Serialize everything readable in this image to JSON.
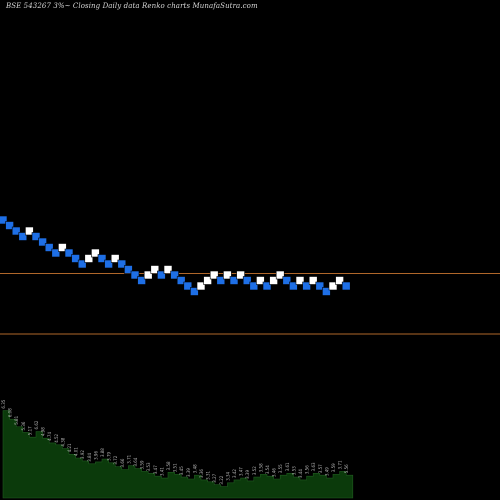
{
  "header": {
    "title": "BSE 543267 3%~  Closing Daily data  Renko  charts MunafaSutra.com"
  },
  "colors": {
    "background": "#000000",
    "up_brick": "#ffffff",
    "down_brick": "#1e6fe6",
    "reference_line": "#b0672a",
    "volume_fill": "#0b3a0b",
    "volume_label": "#b8b8b8"
  },
  "chart_data": {
    "type": "renko",
    "title": "BSE 543267 3%~  Closing Daily data  Renko  charts MunafaSutra.com",
    "brick_size_percent": 3,
    "reference_levels": [
      100,
      89
    ],
    "bricks": [
      {
        "dir": "down",
        "close": 109
      },
      {
        "dir": "down",
        "close": 108
      },
      {
        "dir": "down",
        "close": 107
      },
      {
        "dir": "down",
        "close": 106
      },
      {
        "dir": "up",
        "close": 107
      },
      {
        "dir": "down",
        "close": 106
      },
      {
        "dir": "down",
        "close": 105
      },
      {
        "dir": "down",
        "close": 104
      },
      {
        "dir": "down",
        "close": 103
      },
      {
        "dir": "up",
        "close": 104
      },
      {
        "dir": "down",
        "close": 103
      },
      {
        "dir": "down",
        "close": 102
      },
      {
        "dir": "down",
        "close": 101
      },
      {
        "dir": "up",
        "close": 102
      },
      {
        "dir": "up",
        "close": 103
      },
      {
        "dir": "down",
        "close": 102
      },
      {
        "dir": "down",
        "close": 101
      },
      {
        "dir": "up",
        "close": 102
      },
      {
        "dir": "down",
        "close": 101
      },
      {
        "dir": "down",
        "close": 100
      },
      {
        "dir": "down",
        "close": 99
      },
      {
        "dir": "down",
        "close": 98
      },
      {
        "dir": "up",
        "close": 99
      },
      {
        "dir": "up",
        "close": 100
      },
      {
        "dir": "down",
        "close": 99
      },
      {
        "dir": "up",
        "close": 100
      },
      {
        "dir": "down",
        "close": 99
      },
      {
        "dir": "down",
        "close": 98
      },
      {
        "dir": "down",
        "close": 97
      },
      {
        "dir": "down",
        "close": 96
      },
      {
        "dir": "up",
        "close": 97
      },
      {
        "dir": "up",
        "close": 98
      },
      {
        "dir": "up",
        "close": 99
      },
      {
        "dir": "down",
        "close": 98
      },
      {
        "dir": "up",
        "close": 99
      },
      {
        "dir": "down",
        "close": 98
      },
      {
        "dir": "up",
        "close": 99
      },
      {
        "dir": "down",
        "close": 98
      },
      {
        "dir": "down",
        "close": 97
      },
      {
        "dir": "up",
        "close": 98
      },
      {
        "dir": "down",
        "close": 97
      },
      {
        "dir": "up",
        "close": 98
      },
      {
        "dir": "up",
        "close": 99
      },
      {
        "dir": "down",
        "close": 98
      },
      {
        "dir": "down",
        "close": 97
      },
      {
        "dir": "up",
        "close": 98
      },
      {
        "dir": "down",
        "close": 97
      },
      {
        "dir": "up",
        "close": 98
      },
      {
        "dir": "down",
        "close": 97
      },
      {
        "dir": "down",
        "close": 96
      },
      {
        "dir": "up",
        "close": 97
      },
      {
        "dir": "up",
        "close": 98
      },
      {
        "dir": "down",
        "close": 97
      }
    ],
    "volume": {
      "values": [
        92,
        83,
        75,
        69,
        64,
        70,
        63,
        58,
        56,
        52,
        46,
        42,
        39,
        36,
        38,
        41,
        37,
        33,
        30,
        34,
        31,
        28,
        26,
        23,
        21,
        27,
        25,
        22,
        20,
        24,
        19,
        17,
        14,
        12,
        16,
        19,
        21,
        18,
        22,
        25,
        23,
        20,
        24,
        26,
        22,
        19,
        23,
        26,
        24,
        21,
        25,
        28,
        24
      ],
      "labels": [
        "6.35",
        "6.08",
        "5.81",
        "5.36",
        "5.17",
        "6.62",
        "4.98",
        "4.74",
        "4.52",
        "4.38",
        "4.21",
        "4.01",
        "3.92",
        "3.84",
        "3.96",
        "3.88",
        "3.79",
        "3.72",
        "3.66",
        "3.71",
        "3.64",
        "3.59",
        "3.53",
        "3.47",
        "3.41",
        "3.58",
        "3.51",
        "3.45",
        "3.39",
        "3.48",
        "3.36",
        "3.31",
        "3.27",
        "3.22",
        "3.34",
        "3.42",
        "3.47",
        "3.39",
        "3.52",
        "3.58",
        "3.54",
        "3.46",
        "3.55",
        "3.61",
        "3.53",
        "3.44",
        "3.56",
        "3.63",
        "3.57",
        "3.49",
        "3.59",
        "3.71",
        "5.56"
      ]
    }
  }
}
